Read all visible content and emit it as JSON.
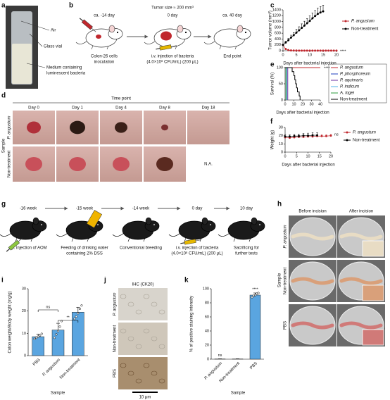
{
  "panel_a": {
    "letter": "a",
    "labels": [
      "Air",
      "Glass vial",
      "Medium containing",
      "luminescent bacteria"
    ]
  },
  "panel_b": {
    "letter": "b",
    "steps": [
      {
        "time": "ca. -14 day",
        "caption": [
          "Colon-26 cells",
          "inoculation"
        ]
      },
      {
        "note": "Tumor size ≈ 200 mm³",
        "time": "0 day",
        "caption": [
          "i.v. injection of bacteria",
          "(4.0×10⁸ CFU/mL) (200 μL)"
        ]
      },
      {
        "time": "ca. 40 day",
        "caption": [
          "End point"
        ]
      }
    ]
  },
  "panel_d": {
    "letter": "d",
    "header": "Time point",
    "columns": [
      "Day 0",
      "Day 1",
      "Day 4",
      "Day 8",
      "Day 18"
    ],
    "row_axis": "Sample",
    "rows": [
      "P. angustum",
      "Non-treatment"
    ],
    "missing": "N.A."
  },
  "panel_g": {
    "letter": "g",
    "steps": [
      {
        "time": "-16 week",
        "caption": [
          "i.p. injection of AOM"
        ]
      },
      {
        "time": "-15 week",
        "caption": [
          "Feeding of drinking water",
          "containing 2% DSS"
        ]
      },
      {
        "time": "-14 week",
        "caption": [
          "Conventional breeding"
        ]
      },
      {
        "time": "0 day",
        "caption": [
          "i.v. injection of bacteria",
          "(4.0×10⁸ CFU/mL) (200 μL)"
        ]
      },
      {
        "time": "10 day",
        "caption": [
          "Sacrificing for",
          "further tests"
        ]
      }
    ]
  },
  "panel_h": {
    "letter": "h",
    "columns": [
      "Before incision",
      "After incision"
    ],
    "row_axis": "Sample",
    "rows": [
      "P. angustum",
      "Non-treatment",
      "PBS"
    ]
  },
  "panel_j": {
    "letter": "j",
    "title": "IHC (CK20)",
    "rows": [
      "P. angustum",
      "Non-treatment",
      "PBS"
    ],
    "scale": "10 μm"
  },
  "chart_data": [
    {
      "type": "line",
      "letter": "c",
      "ylabel": "Tumor volume (mm³)",
      "xlabel": "Days after bacterial injection",
      "xlim": [
        0,
        20
      ],
      "xticks": [
        0,
        5,
        10,
        15,
        20
      ],
      "ylim": [
        0,
        1400
      ],
      "yticks": [
        0,
        200,
        400,
        600,
        800,
        1000,
        1200,
        1400
      ],
      "markers": true,
      "legend": "right",
      "annotations": [
        "****"
      ],
      "series": [
        {
          "name": "P. angustum",
          "color": "#c0272d",
          "x": [
            0,
            1,
            2,
            3,
            4,
            5,
            6,
            7,
            8,
            9,
            10,
            11,
            12,
            13,
            14,
            15,
            16,
            17,
            18,
            19,
            20
          ],
          "values": [
            200,
            60,
            20,
            10,
            5,
            5,
            3,
            3,
            2,
            2,
            2,
            2,
            2,
            2,
            2,
            2,
            2,
            2,
            2,
            2,
            2
          ]
        },
        {
          "name": "Non-treatment",
          "color": "#000000",
          "x": [
            0,
            1,
            2,
            3,
            4,
            5,
            6,
            7,
            8,
            9,
            10,
            11,
            12,
            13,
            14,
            15
          ],
          "values": [
            200,
            280,
            360,
            450,
            530,
            620,
            700,
            780,
            860,
            940,
            1020,
            1110,
            1190,
            1260,
            1310,
            1350
          ],
          "errors": [
            20,
            40,
            60,
            80,
            90,
            110,
            120,
            140,
            150,
            160,
            170,
            180,
            190,
            200,
            200,
            210
          ]
        }
      ]
    },
    {
      "type": "line",
      "letter": "e",
      "ylabel": "Survival (%)",
      "xlabel": "Days after bacterial injection",
      "xlim": [
        0,
        40
      ],
      "xticks": [
        0,
        10,
        20,
        30,
        40
      ],
      "ylim": [
        0,
        100
      ],
      "yticks": [
        0,
        50,
        100
      ],
      "markers": false,
      "legend": "right",
      "annotations": [
        "****"
      ],
      "series": [
        {
          "name": "P. angustum",
          "color": "#c0272d",
          "x": [
            0,
            40
          ],
          "values": [
            100,
            100
          ]
        },
        {
          "name": "P. phosphoreum",
          "color": "#1f3fbf",
          "x": [
            0,
            2,
            2
          ],
          "values": [
            100,
            100,
            0
          ]
        },
        {
          "name": "P. aquimaris",
          "color": "#6a2fa0",
          "x": [
            0,
            3,
            3
          ],
          "values": [
            100,
            100,
            0
          ]
        },
        {
          "name": "P. indicum",
          "color": "#4fb3e8",
          "x": [
            0,
            2,
            2
          ],
          "values": [
            100,
            100,
            0
          ]
        },
        {
          "name": "A. logei",
          "color": "#2e9e3e",
          "x": [
            0,
            1,
            1
          ],
          "values": [
            100,
            100,
            0
          ]
        },
        {
          "name": "Non-treatment",
          "color": "#000000",
          "x": [
            0,
            8,
            8,
            10,
            10,
            11,
            11,
            12,
            12,
            13,
            13,
            14,
            14,
            16,
            16,
            17,
            17
          ],
          "values": [
            100,
            100,
            87.5,
            87.5,
            75,
            75,
            62.5,
            62.5,
            50,
            50,
            37.5,
            37.5,
            25,
            25,
            12.5,
            12.5,
            0
          ]
        }
      ]
    },
    {
      "type": "line",
      "letter": "f",
      "ylabel": "Weight (g)",
      "xlabel": "Days after bacterial injection",
      "xlim": [
        0,
        20
      ],
      "xticks": [
        0,
        5,
        10,
        15,
        20
      ],
      "ylim": [
        0,
        30
      ],
      "yticks": [
        0,
        10,
        20,
        30
      ],
      "markers": true,
      "legend": "right",
      "annotations": [
        "ns"
      ],
      "series": [
        {
          "name": "P. angustum",
          "color": "#c0272d",
          "x": [
            0,
            2,
            4,
            6,
            8,
            10,
            12,
            14,
            16,
            18,
            20
          ],
          "values": [
            18,
            17.5,
            18,
            18.5,
            18.5,
            19,
            19,
            19.5,
            19.5,
            19.5,
            20
          ],
          "errors": [
            1.5,
            1.5,
            1.5,
            1.5,
            1.5,
            1.5,
            1.5,
            1.5,
            1.5,
            1.5,
            1.5
          ]
        },
        {
          "name": "Non-treatment",
          "color": "#000000",
          "x": [
            0,
            2,
            4,
            6,
            8,
            10,
            12,
            14
          ],
          "values": [
            19,
            19,
            19.5,
            19.5,
            20,
            20,
            20.5,
            20.5
          ],
          "errors": [
            2,
            2,
            2,
            2.5,
            2.5,
            3,
            3,
            3
          ]
        }
      ]
    },
    {
      "type": "bar",
      "letter": "i",
      "ylabel": "Colon weight/Body weight (mg/g)",
      "xlabel": "Sample",
      "categories": [
        "PBS",
        "P. angustum",
        "Non-treatment"
      ],
      "values": [
        8.5,
        11.5,
        19.5
      ],
      "errors": [
        1.2,
        3.0,
        2.2
      ],
      "points": [
        [
          7.5,
          8,
          8.5,
          9,
          9.8
        ],
        [
          8,
          9.5,
          11,
          13,
          15.5
        ],
        [
          16.5,
          17.5,
          19,
          21,
          22.5
        ]
      ],
      "color": "#5aa5e0",
      "ylim": [
        0,
        30
      ],
      "yticks": [
        0,
        10,
        20,
        30
      ],
      "annotations": [
        "ns",
        "**"
      ]
    },
    {
      "type": "bar",
      "letter": "k",
      "ylabel": "% of positive staining intensity",
      "xlabel": "Sample",
      "categories": [
        "P. angustum",
        "Non-treatment",
        "PBS"
      ],
      "values": [
        0.3,
        0.3,
        91
      ],
      "errors": [
        0.2,
        0.2,
        3
      ],
      "points": [
        [],
        [],
        [
          88,
          90,
          91,
          93,
          94
        ]
      ],
      "color": "#5aa5e0",
      "ylim": [
        0,
        100
      ],
      "yticks": [
        0,
        20,
        40,
        60,
        80,
        100
      ],
      "annotations": [
        "ns",
        "****"
      ]
    }
  ]
}
